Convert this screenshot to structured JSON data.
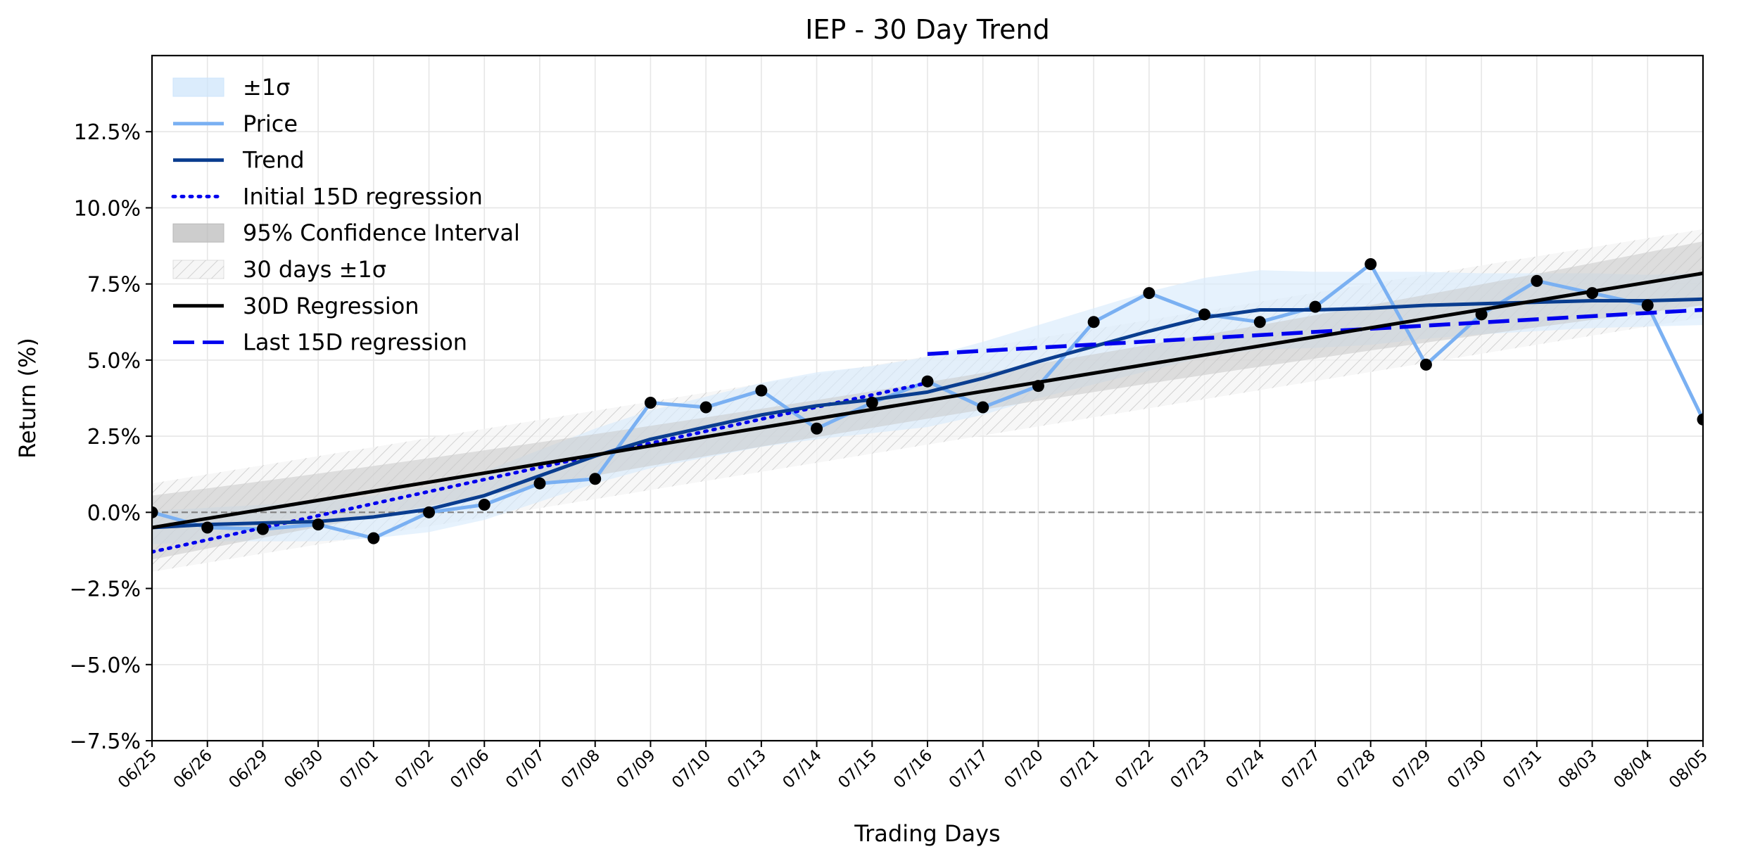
{
  "chart_data": {
    "type": "line",
    "title": "IEP - 30 Day Trend",
    "xlabel": "Trading Days",
    "ylabel": "Return (%)",
    "categories": [
      "06/25",
      "06/26",
      "06/29",
      "06/30",
      "07/01",
      "07/02",
      "07/06",
      "07/07",
      "07/08",
      "07/09",
      "07/10",
      "07/13",
      "07/14",
      "07/15",
      "07/16",
      "07/17",
      "07/20",
      "07/21",
      "07/22",
      "07/23",
      "07/24",
      "07/27",
      "07/28",
      "07/29",
      "07/30",
      "07/31",
      "08/03",
      "08/04",
      "08/05"
    ],
    "ylim": [
      -7.5,
      15.0
    ],
    "yticks": [
      -7.5,
      -5.0,
      -2.5,
      0.0,
      2.5,
      5.0,
      7.5,
      10.0,
      12.5
    ],
    "ytick_labels": [
      "−7.5%",
      "−5.0%",
      "−2.5%",
      "0.0%",
      "2.5%",
      "5.0%",
      "7.5%",
      "10.0%",
      "12.5%"
    ],
    "grid": true,
    "legend_position": "top-left",
    "zero_line": 0,
    "legend": [
      {
        "label": "±1σ",
        "kind": "band",
        "color": "#cce4fb"
      },
      {
        "label": "Price",
        "kind": "line",
        "color": "#7ab0f2"
      },
      {
        "label": "Trend",
        "kind": "line",
        "color": "#0a3d8f"
      },
      {
        "label": "Initial 15D regression",
        "kind": "dotted",
        "color": "#0000ee"
      },
      {
        "label": "95% Confidence Interval",
        "kind": "band",
        "color": "#b8b8b8"
      },
      {
        "label": "30 days ±1σ",
        "kind": "hatch",
        "color": "#cccccc"
      },
      {
        "label": "30D Regression",
        "kind": "line",
        "color": "#000000"
      },
      {
        "label": "Last 15D regression",
        "kind": "dashed",
        "color": "#0000ee"
      }
    ],
    "series": [
      {
        "name": "Price",
        "color": "#7ab0f2",
        "values": [
          0.0,
          -0.5,
          -0.55,
          -0.4,
          -0.85,
          0.0,
          0.25,
          0.95,
          1.1,
          3.6,
          3.45,
          4.0,
          2.75,
          3.6,
          4.3,
          3.45,
          4.15,
          6.25,
          7.2,
          6.5,
          6.25,
          6.75,
          8.15,
          4.85,
          6.5,
          7.6,
          7.2,
          6.8,
          3.05
        ]
      },
      {
        "name": "Trend",
        "color": "#0a3d8f",
        "values": [
          -0.5,
          -0.4,
          -0.35,
          -0.3,
          -0.15,
          0.1,
          0.55,
          1.2,
          1.85,
          2.4,
          2.8,
          3.2,
          3.5,
          3.7,
          3.95,
          4.4,
          4.95,
          5.45,
          5.95,
          6.4,
          6.65,
          6.65,
          6.7,
          6.8,
          6.85,
          6.9,
          6.95,
          6.95,
          7.0
        ]
      },
      {
        "name": "30D Regression",
        "color": "#000000",
        "start": -0.5,
        "end": 7.85
      },
      {
        "name": "Initial 15D regression",
        "color": "#0000ee",
        "from_index": 0,
        "to_index": 14,
        "start": -1.3,
        "end": 4.25
      },
      {
        "name": "Last 15D regression",
        "color": "#0000ee",
        "from_index": 14,
        "to_index": 28,
        "start": 5.2,
        "end": 6.65
      }
    ],
    "band_sigma": {
      "name": "±1σ",
      "color": "#d9ebfc",
      "half_width": [
        0.55,
        0.55,
        0.6,
        0.65,
        0.7,
        0.75,
        0.8,
        0.85,
        0.9,
        0.95,
        1.0,
        1.05,
        1.1,
        1.1,
        1.15,
        1.2,
        1.2,
        1.25,
        1.3,
        1.3,
        1.3,
        1.25,
        1.2,
        1.1,
        1.0,
        0.95,
        0.9,
        0.85,
        0.85
      ]
    },
    "band_ci": {
      "name": "95% Confidence Interval",
      "color": "#c8c8c8",
      "half_width_start": 1.05,
      "half_width_mid": 0.6,
      "half_width_end": 1.05
    },
    "band_hatch": {
      "name": "30 days ±1σ",
      "color": "#d0d0d0",
      "half_width": 1.45
    }
  }
}
